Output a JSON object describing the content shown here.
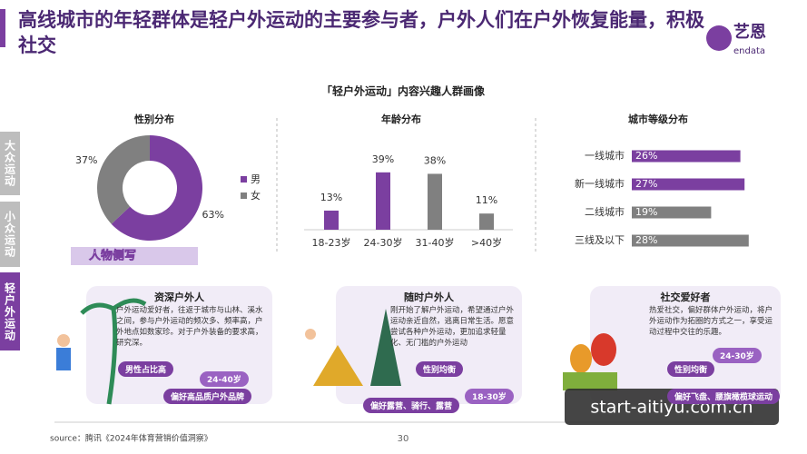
{
  "header": {
    "title": "高线城市的年轻群体是轻户外运动的主要参与者，户外人们在户外恢复能量，积极社交",
    "logo": "艺恩",
    "logo_sub": "endata"
  },
  "tabs": [
    "大众运动",
    "小众运动",
    "轻户外运动"
  ],
  "section_title": "「轻户外运动」内容兴趣人群画像",
  "chart_data": [
    {
      "type": "pie",
      "title": "性别分布",
      "categories": [
        "男",
        "女"
      ],
      "values": [
        63,
        37
      ],
      "value_labels": [
        "63%",
        "37%"
      ],
      "colors": [
        "#7b3fa0",
        "#808080"
      ]
    },
    {
      "type": "bar",
      "title": "年龄分布",
      "categories": [
        "18-23岁",
        "24-30岁",
        "31-40岁",
        ">40岁"
      ],
      "values": [
        13,
        39,
        38,
        11
      ],
      "value_labels": [
        "13%",
        "39%",
        "38%",
        "11%"
      ],
      "colors": [
        "#7b3fa0",
        "#7b3fa0",
        "#808080",
        "#808080"
      ]
    },
    {
      "type": "hbar",
      "title": "城市等级分布",
      "categories": [
        "一线城市",
        "新一线城市",
        "二线城市",
        "三线及以下"
      ],
      "values": [
        26,
        27,
        19,
        28
      ],
      "value_labels": [
        "26%",
        "27%",
        "19%",
        "28%"
      ],
      "colors": [
        "#7b3fa0",
        "#7b3fa0",
        "#808080",
        "#808080"
      ]
    }
  ],
  "profile_title": "人物侧写",
  "personas": [
    {
      "title": "资深户外人",
      "desc": "户外运动爱好者，往返于城市与山林、溪水之间，参与户外运动的频次多、频率高，户外地点如数家珍。对于户外装备的要求高，研究深。",
      "tags": [
        "男性占比高",
        "24-40岁",
        "偏好高品质户外品牌"
      ]
    },
    {
      "title": "随时户外人",
      "desc": "刚开始了解户外运动，希望通过户外运动亲近自然，逃离日常生活。愿意尝试各种户外运动，更加追求轻量化、无门槛的户外运动",
      "tags": [
        "性别均衡",
        "18-30岁",
        "偏好露营、骑行、露营"
      ]
    },
    {
      "title": "社交爱好者",
      "desc": "热爱社交，偏好群体户外运动，将户外运动作为拓圈的方式之一，享受运动过程中交往的乐趣。",
      "tags": [
        "性别均衡",
        "24-30岁",
        "偏好飞盘、腰旗橄榄球运动"
      ]
    }
  ],
  "source": "source：腾讯《2024年体育营销价值洞察》",
  "page_number": "30",
  "watermark": "start-aitiyu.com.cn"
}
